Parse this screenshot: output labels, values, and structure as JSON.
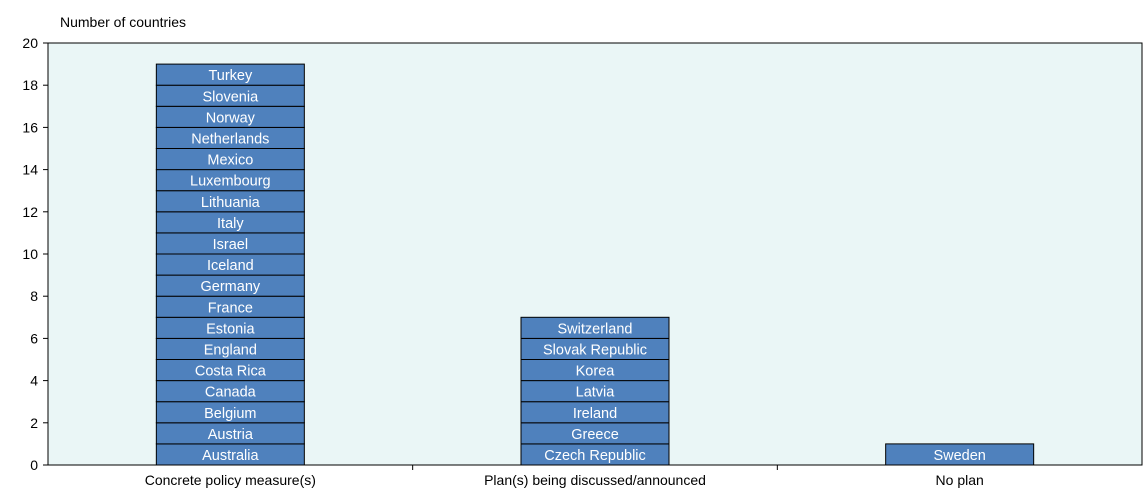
{
  "chart_data": {
    "type": "bar",
    "stacked_labels": true,
    "title": "",
    "xlabel": "",
    "ylabel": "Number of countries",
    "ylim": [
      0,
      20
    ],
    "yticks": [
      0,
      2,
      4,
      6,
      8,
      10,
      12,
      14,
      16,
      18,
      20
    ],
    "grid": false,
    "categories": [
      "Concrete policy measure(s)",
      "Plan(s) being discussed/announced",
      "No plan"
    ],
    "values": [
      19,
      7,
      1
    ],
    "stacks": [
      [
        "Australia",
        "Austria",
        "Belgium",
        "Canada",
        "Costa Rica",
        "England",
        "Estonia",
        "France",
        "Germany",
        "Iceland",
        "Israel",
        "Italy",
        "Lithuania",
        "Luxembourg",
        "Mexico",
        "Netherlands",
        "Norway",
        "Slovenia",
        "Turkey"
      ],
      [
        "Czech Republic",
        "Greece",
        "Ireland",
        "Latvia",
        "Korea",
        "Slovak Republic",
        "Switzerland"
      ],
      [
        "Sweden"
      ]
    ],
    "colors": {
      "bar_fill": "#4f81bd",
      "bar_stroke": "#000000",
      "plot_background": "#eaf6f6",
      "axis": "#000000",
      "segment_text": "#ffffff"
    }
  }
}
